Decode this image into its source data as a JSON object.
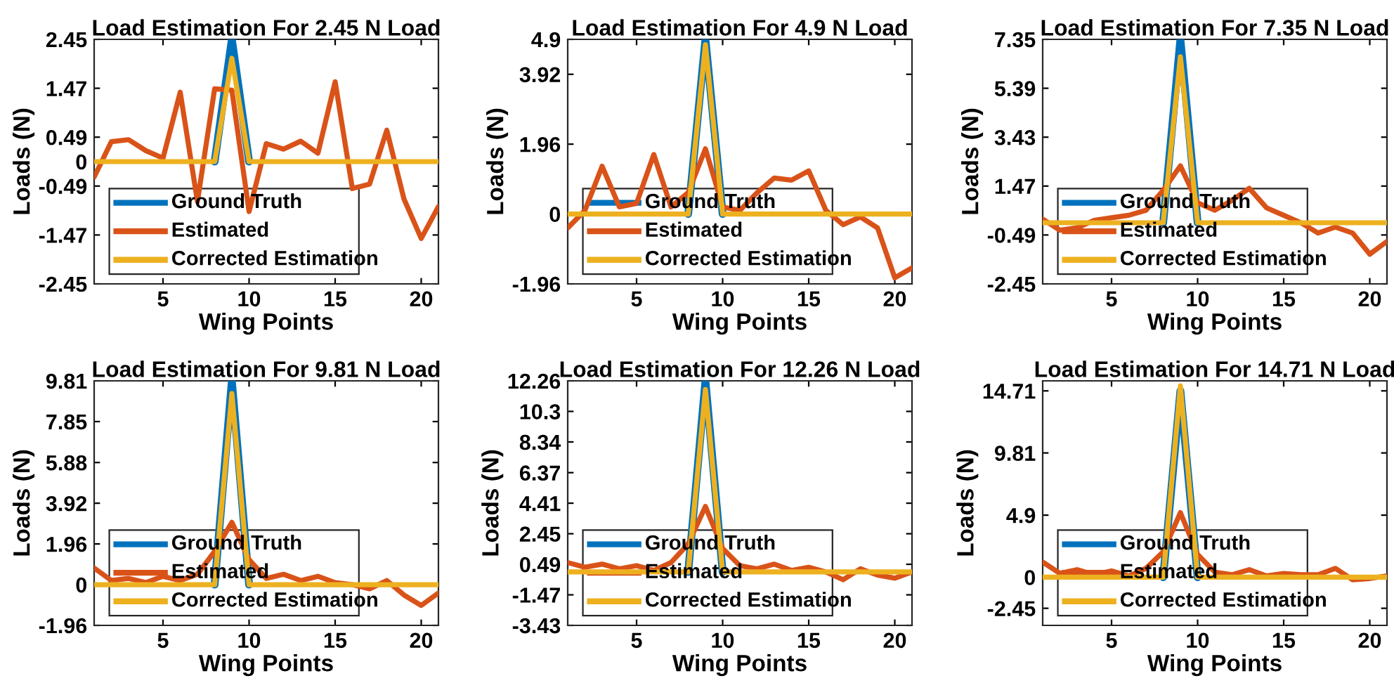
{
  "chart_data": [
    {
      "type": "line",
      "title": "Load Estimation For 2.45 N Load",
      "xlabel": "Wing Points",
      "ylabel": "Loads (N)",
      "legend": "bottom left",
      "x": [
        1,
        2,
        3,
        4,
        5,
        6,
        7,
        8,
        9,
        10,
        11,
        12,
        13,
        14,
        15,
        16,
        17,
        18,
        19,
        20,
        21
      ],
      "xlim": [
        1,
        21
      ],
      "xticks": [
        5,
        10,
        15,
        20
      ],
      "ylim": [
        -2.45,
        2.45
      ],
      "yticks": [
        -2.45,
        -1.47,
        -0.49,
        0,
        0.49,
        1.47,
        2.45
      ],
      "series": [
        {
          "name": "Ground Truth",
          "color": "#0072bd",
          "values": [
            null,
            null,
            null,
            null,
            null,
            null,
            null,
            0,
            2.45,
            0,
            null,
            null,
            null,
            null,
            null,
            null,
            null,
            null,
            null,
            null,
            null
          ]
        },
        {
          "name": "Estimated",
          "color": "#d95319",
          "values": [
            -0.31,
            0.4,
            0.44,
            0.22,
            0.07,
            1.39,
            -0.8,
            1.46,
            1.43,
            -1.0,
            0.36,
            0.25,
            0.41,
            0.17,
            1.6,
            -0.54,
            -0.45,
            0.63,
            -0.75,
            -1.54,
            -0.9
          ]
        },
        {
          "name": "Corrected Estimation",
          "color": "#edb120",
          "values": [
            0,
            0,
            0,
            0,
            0,
            0,
            0,
            0,
            2.07,
            0,
            0,
            0,
            0,
            0,
            0,
            0,
            0,
            0,
            0,
            0,
            0
          ]
        }
      ]
    },
    {
      "type": "line",
      "title": "Load Estimation For 4.9 N Load",
      "xlabel": "Wing Points",
      "ylabel": "Loads (N)",
      "legend": "bottom left",
      "x": [
        1,
        2,
        3,
        4,
        5,
        6,
        7,
        8,
        9,
        10,
        11,
        12,
        13,
        14,
        15,
        16,
        17,
        18,
        19,
        20,
        21
      ],
      "xlim": [
        1,
        21
      ],
      "xticks": [
        5,
        10,
        15,
        20
      ],
      "ylim": [
        -1.96,
        4.9
      ],
      "yticks": [
        -1.96,
        0,
        1.96,
        3.92,
        4.9
      ],
      "series": [
        {
          "name": "Ground Truth",
          "color": "#0072bd",
          "values": [
            null,
            null,
            null,
            null,
            null,
            null,
            null,
            0,
            4.9,
            0,
            null,
            null,
            null,
            null,
            null,
            null,
            null,
            null,
            null,
            null,
            null
          ]
        },
        {
          "name": "Estimated",
          "color": "#d95319",
          "values": [
            -0.39,
            0.1,
            1.34,
            0.2,
            0.3,
            1.67,
            0.2,
            0.6,
            1.83,
            0.2,
            0.1,
            0.6,
            1.01,
            0.95,
            1.21,
            0.1,
            -0.3,
            -0.08,
            -0.39,
            -1.79,
            -1.51
          ]
        },
        {
          "name": "Corrected Estimation",
          "color": "#edb120",
          "values": [
            0,
            0,
            0,
            0,
            0,
            0,
            0,
            0,
            4.75,
            0,
            0,
            0,
            0,
            0,
            0,
            0,
            0,
            0,
            0,
            0,
            0
          ]
        }
      ]
    },
    {
      "type": "line",
      "title": "Load Estimation For 7.35 N Load",
      "xlabel": "Wing Points",
      "ylabel": "Loads (N)",
      "legend": "bottom left",
      "x": [
        1,
        2,
        3,
        4,
        5,
        6,
        7,
        8,
        9,
        10,
        11,
        12,
        13,
        14,
        15,
        16,
        17,
        18,
        19,
        20,
        21
      ],
      "xlim": [
        1,
        21
      ],
      "xticks": [
        5,
        10,
        15,
        20
      ],
      "ylim": [
        -2.45,
        7.35
      ],
      "yticks": [
        -2.45,
        -0.49,
        1.47,
        3.43,
        5.39,
        7.35
      ],
      "series": [
        {
          "name": "Ground Truth",
          "color": "#0072bd",
          "values": [
            null,
            null,
            null,
            null,
            null,
            null,
            null,
            0,
            7.35,
            0,
            null,
            null,
            null,
            null,
            null,
            null,
            null,
            null,
            null,
            null,
            null
          ]
        },
        {
          "name": "Estimated",
          "color": "#d95319",
          "values": [
            0.15,
            -0.3,
            -0.2,
            0.1,
            0.2,
            0.3,
            0.5,
            1.3,
            2.28,
            0.8,
            0.5,
            0.9,
            1.38,
            0.6,
            0.3,
            0.0,
            -0.41,
            -0.17,
            -0.41,
            -1.26,
            -0.75
          ]
        },
        {
          "name": "Corrected Estimation",
          "color": "#edb120",
          "values": [
            0,
            0,
            0,
            0,
            0,
            0,
            0,
            0,
            6.65,
            0,
            0,
            0,
            0,
            0,
            0,
            0,
            0,
            0,
            0,
            0,
            0
          ]
        }
      ]
    },
    {
      "type": "line",
      "title": "Load Estimation For 9.81 N Load",
      "xlabel": "Wing Points",
      "ylabel": "Loads (N)",
      "legend": "bottom left",
      "x": [
        1,
        2,
        3,
        4,
        5,
        6,
        7,
        8,
        9,
        10,
        11,
        12,
        13,
        14,
        15,
        16,
        17,
        18,
        19,
        20,
        21
      ],
      "xlim": [
        1,
        21
      ],
      "xticks": [
        5,
        10,
        15,
        20
      ],
      "ylim": [
        -1.96,
        9.81
      ],
      "yticks": [
        -1.96,
        0,
        1.96,
        3.92,
        5.88,
        7.85,
        9.81
      ],
      "series": [
        {
          "name": "Ground Truth",
          "color": "#0072bd",
          "values": [
            null,
            null,
            null,
            null,
            null,
            null,
            null,
            0,
            9.81,
            0,
            null,
            null,
            null,
            null,
            null,
            null,
            null,
            null,
            null,
            null,
            null
          ]
        },
        {
          "name": "Estimated",
          "color": "#d95319",
          "values": [
            0.8,
            0.2,
            0.3,
            0.1,
            0.4,
            0.2,
            0.5,
            1.6,
            3.0,
            1.2,
            0.3,
            0.5,
            0.2,
            0.4,
            0.1,
            0.0,
            -0.2,
            0.2,
            -0.5,
            -1.0,
            -0.4
          ]
        },
        {
          "name": "Corrected Estimation",
          "color": "#edb120",
          "values": [
            0,
            0,
            0,
            0,
            0,
            0,
            0,
            0,
            9.2,
            0,
            0,
            0,
            0,
            0,
            0,
            0,
            0,
            0,
            0,
            0,
            0
          ]
        }
      ]
    },
    {
      "type": "line",
      "title": "Load Estimation For 12.26 N Load",
      "xlabel": "Wing Points",
      "ylabel": "Loads (N)",
      "legend": "bottom left",
      "x": [
        1,
        2,
        3,
        4,
        5,
        6,
        7,
        8,
        9,
        10,
        11,
        12,
        13,
        14,
        15,
        16,
        17,
        18,
        19,
        20,
        21
      ],
      "xlim": [
        1,
        21
      ],
      "xticks": [
        5,
        10,
        15,
        20
      ],
      "ylim": [
        -3.43,
        12.26
      ],
      "yticks": [
        -3.43,
        -1.47,
        0.49,
        2.45,
        4.41,
        6.37,
        8.34,
        10.3,
        12.26
      ],
      "series": [
        {
          "name": "Ground Truth",
          "color": "#0072bd",
          "values": [
            null,
            null,
            null,
            null,
            null,
            null,
            null,
            0,
            12.26,
            0,
            null,
            null,
            null,
            null,
            null,
            null,
            null,
            null,
            null,
            null,
            null
          ]
        },
        {
          "name": "Estimated",
          "color": "#d95319",
          "values": [
            0.6,
            0.3,
            0.5,
            0.2,
            0.4,
            0.1,
            0.6,
            1.8,
            4.2,
            1.5,
            0.4,
            0.2,
            0.5,
            0.1,
            0.3,
            0.0,
            -0.5,
            0.2,
            -0.2,
            -0.4,
            0.0
          ]
        },
        {
          "name": "Corrected Estimation",
          "color": "#edb120",
          "values": [
            0,
            0,
            0,
            0,
            0,
            0,
            0,
            0,
            11.7,
            0,
            0,
            0,
            0,
            0,
            0,
            0,
            0,
            0,
            0,
            0,
            0
          ]
        }
      ]
    },
    {
      "type": "line",
      "title": "Load Estimation For 14.71 N Load",
      "xlabel": "Wing Points",
      "ylabel": "Loads (N)",
      "legend": "bottom left",
      "x": [
        1,
        2,
        3,
        4,
        5,
        6,
        7,
        8,
        9,
        10,
        11,
        12,
        13,
        14,
        15,
        16,
        17,
        18,
        19,
        20,
        21
      ],
      "xlim": [
        1,
        21
      ],
      "xticks": [
        5,
        10,
        15,
        20
      ],
      "ylim": [
        -3.8,
        15.5
      ],
      "yticks": [
        -2.45,
        0,
        4.9,
        9.81,
        14.71
      ],
      "series": [
        {
          "name": "Ground Truth",
          "color": "#0072bd",
          "values": [
            null,
            null,
            null,
            null,
            null,
            null,
            null,
            0,
            14.71,
            0,
            null,
            null,
            null,
            null,
            null,
            null,
            null,
            null,
            null,
            null,
            null
          ]
        },
        {
          "name": "Estimated",
          "color": "#d95319",
          "values": [
            1.2,
            0.3,
            0.6,
            0.2,
            0.5,
            0.1,
            0.7,
            2.0,
            5.1,
            1.8,
            0.4,
            0.2,
            0.6,
            0.1,
            0.3,
            0.2,
            0.2,
            0.7,
            -0.2,
            -0.1,
            0.1
          ]
        },
        {
          "name": "Corrected Estimation",
          "color": "#edb120",
          "values": [
            0,
            0,
            0,
            0,
            0,
            0,
            0,
            0,
            15.1,
            0,
            0,
            0,
            0,
            0,
            0,
            0,
            0,
            0,
            0,
            0,
            0
          ]
        }
      ]
    }
  ]
}
